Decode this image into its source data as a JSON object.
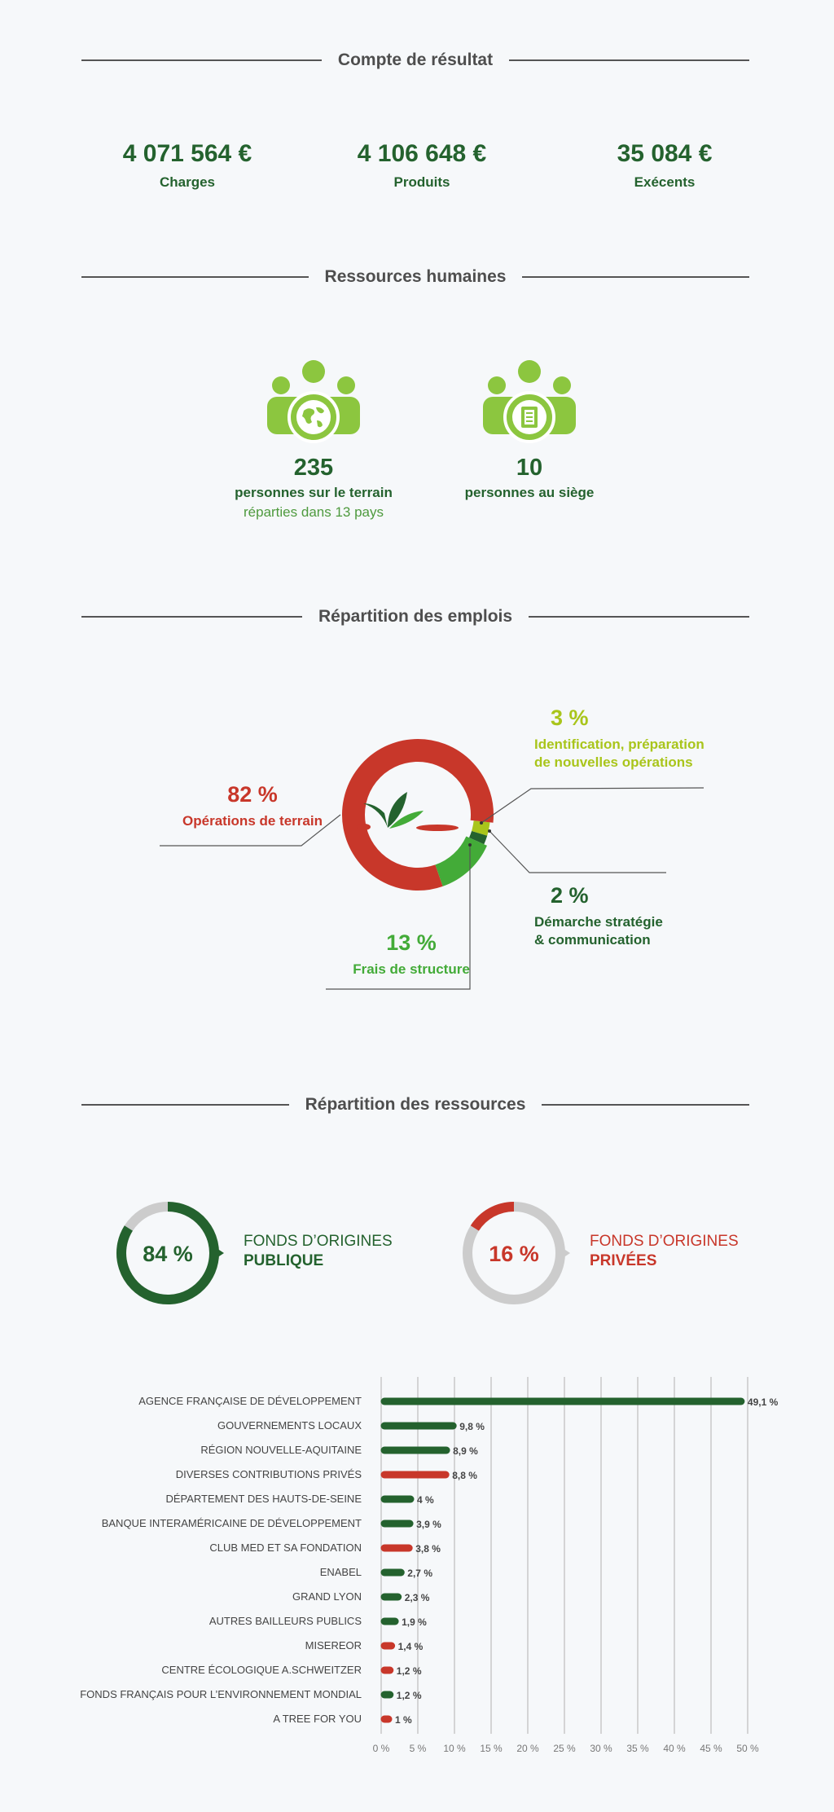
{
  "sections": {
    "results_title": "Compte de résultat",
    "hr_title": "Ressources humaines",
    "jobs_title": "Répartition des emplois",
    "resources_title": "Répartition des ressources"
  },
  "results": [
    {
      "value": "4 071 564 €",
      "label": "Charges"
    },
    {
      "value": "4 106 648 €",
      "label": "Produits"
    },
    {
      "value": "35 084 €",
      "label": "Exécents"
    }
  ],
  "hr": {
    "field": {
      "number": "235",
      "line1": "personnes sur le terrain",
      "line2": "réparties dans 13 pays",
      "icon": "globe-team-icon"
    },
    "hq": {
      "number": "10",
      "line1": "personnes au siège",
      "icon": "document-team-icon"
    }
  },
  "jobs": {
    "ops": {
      "pct": "82 %",
      "label": "Opérations de terrain",
      "color": "#c8372a"
    },
    "ident": {
      "pct": "3 %",
      "label1": "Identification, préparation",
      "label2": "de nouvelles opérations",
      "color": "#a9c51b"
    },
    "strat": {
      "pct": "2 %",
      "label1": "Démarche stratégie",
      "label2": "& communication",
      "color": "#24622e"
    },
    "struct": {
      "pct": "13 %",
      "label": "Frais de structure",
      "color": "#43ab38"
    }
  },
  "funds": {
    "public": {
      "pct": "84 %",
      "label1": "FONDS D’ORIGINES",
      "label2": "PUBLIQUE",
      "color": "#24622e"
    },
    "private": {
      "pct": "16 %",
      "label1": "FONDS D’ORIGINES",
      "label2": "PRIVÉES",
      "color": "#c8372a"
    }
  },
  "chart_data": [
    {
      "type": "pie",
      "categories": [
        "Opérations de terrain",
        "Identification, préparation de nouvelles opérations",
        "Démarche stratégie & communication",
        "Frais de structure"
      ],
      "values": [
        82,
        3,
        2,
        13
      ],
      "colors": [
        "#c8372a",
        "#a9c51b",
        "#24622e",
        "#43ab38"
      ]
    },
    {
      "type": "pie",
      "categories": [
        "FONDS D’ORIGINES PUBLIQUE",
        "FONDS D’ORIGINES PRIVÉES"
      ],
      "values": [
        84,
        16
      ]
    },
    {
      "type": "bar",
      "orientation": "horizontal",
      "categories": [
        "AGENCE FRANÇAISE DE DÉVELOPPEMENT",
        "GOUVERNEMENTS LOCAUX",
        "RÉGION NOUVELLE-AQUITAINE",
        "DIVERSES CONTRIBUTIONS PRIVÉS",
        "DÉPARTEMENT DES HAUTS-DE-SEINE",
        "BANQUE INTERAMÉRICAINE DE DÉVELOPPEMENT",
        "CLUB MED ET SA FONDATION",
        "ENABEL",
        "GRAND LYON",
        "AUTRES BAILLEURS PUBLICS",
        "MISEREOR",
        "CENTRE ÉCOLOGIQUE A.SCHWEITZER",
        "FONDS FRANÇAIS POUR L’ENVIRONNEMENT MONDIAL",
        "A TREE FOR YOU"
      ],
      "values": [
        49.1,
        9.8,
        8.9,
        8.8,
        4,
        3.9,
        3.8,
        2.7,
        2.3,
        1.9,
        1.4,
        1.2,
        1.2,
        1
      ],
      "value_labels": [
        "49,1 %",
        "9,8 %",
        "8,9 %",
        "8,8 %",
        "4 %",
        "3,9 %",
        "3,8 %",
        "2,7 %",
        "2,3 %",
        "1,9 %",
        "1,4 %",
        "1,2 %",
        "1,2 %",
        "1 %"
      ],
      "bar_kind": [
        "public",
        "public",
        "public",
        "private",
        "public",
        "public",
        "private",
        "public",
        "public",
        "public",
        "private",
        "private",
        "public",
        "private"
      ],
      "colors": {
        "public": "#24622e",
        "private": "#c8372a"
      },
      "xlim": [
        0,
        50
      ],
      "xticks": [
        "0 %",
        "5 %",
        "10 %",
        "15 %",
        "20 %",
        "25 %",
        "30 %",
        "35 %",
        "40 %",
        "45 %",
        "50 %"
      ],
      "grid": true
    }
  ]
}
